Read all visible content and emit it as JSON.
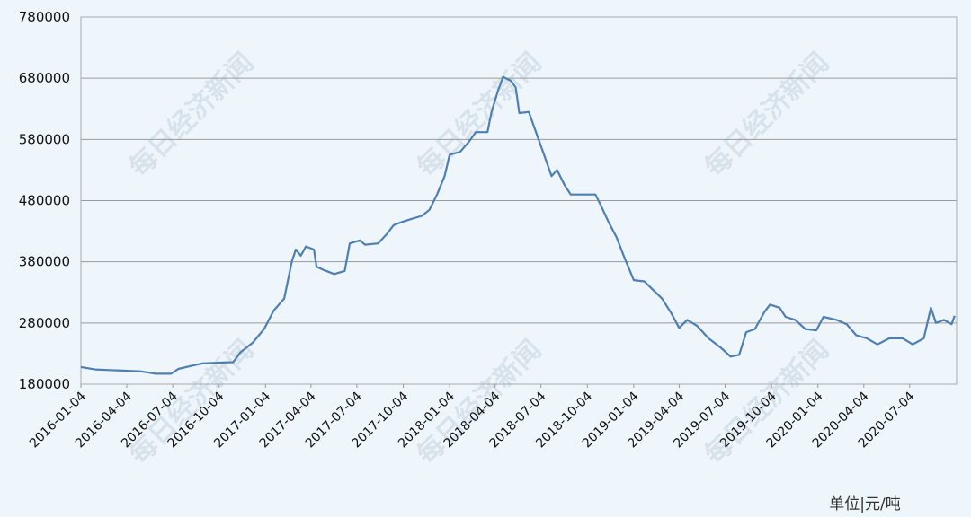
{
  "chart_data": {
    "type": "line",
    "title": "",
    "xlabel": "",
    "ylabel": "",
    "unit_label": "单位|元/吨",
    "watermark": "每日经济新闻",
    "ylim": [
      180000,
      780000
    ],
    "yticks": [
      "180000",
      "280000",
      "380000",
      "480000",
      "580000",
      "680000",
      "780000"
    ],
    "xticks": [
      "2016-01-04",
      "2016-04-04",
      "2016-07-04",
      "2016-10-04",
      "2017-01-04",
      "2017-04-04",
      "2017-07-04",
      "2017-10-04",
      "2018-01-04",
      "2018-04-04",
      "2018-07-04",
      "2018-10-04",
      "2019-01-04",
      "2019-04-04",
      "2019-07-04",
      "2019-10-04",
      "2020-01-04",
      "2020-04-04",
      "2020-07-04"
    ],
    "grid": true,
    "line_color": "#4f7fb1",
    "series": [
      {
        "name": "",
        "points": [
          [
            "2016-01-04",
            208000
          ],
          [
            "2016-02-01",
            204000
          ],
          [
            "2016-03-01",
            203000
          ],
          [
            "2016-04-01",
            202000
          ],
          [
            "2016-05-01",
            201000
          ],
          [
            "2016-06-01",
            197000
          ],
          [
            "2016-07-01",
            197000
          ],
          [
            "2016-07-15",
            205000
          ],
          [
            "2016-08-10",
            210000
          ],
          [
            "2016-09-01",
            214000
          ],
          [
            "2016-10-01",
            215000
          ],
          [
            "2016-11-01",
            216000
          ],
          [
            "2016-11-15",
            232000
          ],
          [
            "2016-12-10",
            248000
          ],
          [
            "2017-01-01",
            270000
          ],
          [
            "2017-01-20",
            300000
          ],
          [
            "2017-02-10",
            320000
          ],
          [
            "2017-02-25",
            380000
          ],
          [
            "2017-03-05",
            400000
          ],
          [
            "2017-03-15",
            390000
          ],
          [
            "2017-03-25",
            405000
          ],
          [
            "2017-04-10",
            400000
          ],
          [
            "2017-04-15",
            372000
          ],
          [
            "2017-05-01",
            366000
          ],
          [
            "2017-05-20",
            360000
          ],
          [
            "2017-06-10",
            365000
          ],
          [
            "2017-06-20",
            410000
          ],
          [
            "2017-07-10",
            415000
          ],
          [
            "2017-07-20",
            408000
          ],
          [
            "2017-08-15",
            410000
          ],
          [
            "2017-09-01",
            425000
          ],
          [
            "2017-09-15",
            440000
          ],
          [
            "2017-10-01",
            445000
          ],
          [
            "2017-10-20",
            450000
          ],
          [
            "2017-11-10",
            455000
          ],
          [
            "2017-11-25",
            465000
          ],
          [
            "2017-12-10",
            490000
          ],
          [
            "2017-12-25",
            520000
          ],
          [
            "2018-01-04",
            555000
          ],
          [
            "2018-01-25",
            560000
          ],
          [
            "2018-02-10",
            575000
          ],
          [
            "2018-02-25",
            592000
          ],
          [
            "2018-03-20",
            592000
          ],
          [
            "2018-03-28",
            625000
          ],
          [
            "2018-04-10",
            660000
          ],
          [
            "2018-04-20",
            682000
          ],
          [
            "2018-05-05",
            676000
          ],
          [
            "2018-05-15",
            665000
          ],
          [
            "2018-05-22",
            623000
          ],
          [
            "2018-06-10",
            625000
          ],
          [
            "2018-06-25",
            590000
          ],
          [
            "2018-07-10",
            555000
          ],
          [
            "2018-07-25",
            520000
          ],
          [
            "2018-08-05",
            530000
          ],
          [
            "2018-08-20",
            505000
          ],
          [
            "2018-09-01",
            490000
          ],
          [
            "2018-10-01",
            490000
          ],
          [
            "2018-10-20",
            490000
          ],
          [
            "2018-11-01",
            470000
          ],
          [
            "2018-11-15",
            445000
          ],
          [
            "2018-12-01",
            420000
          ],
          [
            "2018-12-15",
            390000
          ],
          [
            "2018-12-25",
            370000
          ],
          [
            "2019-01-04",
            350000
          ],
          [
            "2019-01-25",
            348000
          ],
          [
            "2019-02-10",
            335000
          ],
          [
            "2019-03-01",
            320000
          ],
          [
            "2019-03-20",
            295000
          ],
          [
            "2019-04-04",
            272000
          ],
          [
            "2019-04-20",
            285000
          ],
          [
            "2019-05-10",
            275000
          ],
          [
            "2019-06-01",
            255000
          ],
          [
            "2019-06-25",
            240000
          ],
          [
            "2019-07-15",
            225000
          ],
          [
            "2019-08-01",
            228000
          ],
          [
            "2019-08-15",
            265000
          ],
          [
            "2019-09-01",
            270000
          ],
          [
            "2019-09-20",
            298000
          ],
          [
            "2019-10-01",
            310000
          ],
          [
            "2019-10-20",
            305000
          ],
          [
            "2019-11-01",
            290000
          ],
          [
            "2019-11-20",
            285000
          ],
          [
            "2019-12-10",
            270000
          ],
          [
            "2020-01-01",
            268000
          ],
          [
            "2020-01-15",
            290000
          ],
          [
            "2020-02-10",
            285000
          ],
          [
            "2020-03-01",
            278000
          ],
          [
            "2020-03-20",
            260000
          ],
          [
            "2020-04-10",
            255000
          ],
          [
            "2020-05-01",
            245000
          ],
          [
            "2020-05-25",
            255000
          ],
          [
            "2020-06-20",
            255000
          ],
          [
            "2020-07-10",
            245000
          ],
          [
            "2020-08-01",
            255000
          ],
          [
            "2020-08-15",
            305000
          ],
          [
            "2020-08-25",
            280000
          ],
          [
            "2020-09-10",
            285000
          ],
          [
            "2020-09-25",
            278000
          ],
          [
            "2020-10-01",
            292000
          ]
        ]
      }
    ]
  }
}
